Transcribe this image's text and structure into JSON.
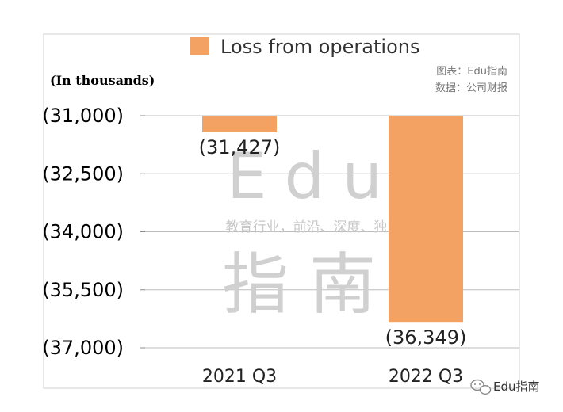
{
  "chart_data": {
    "type": "bar",
    "categories": [
      "2021 Q3",
      "2022 Q3"
    ],
    "series": [
      {
        "name": "Loss from operations",
        "values": [
          -31427,
          -36349
        ]
      }
    ],
    "data_labels": [
      "(31,427)",
      "(36,349)"
    ],
    "y_ticks": [
      -31000,
      -32500,
      -34000,
      -35500,
      -37000
    ],
    "y_tick_labels": [
      "(31,000)",
      "(32,500)",
      "(34,000)",
      "(35,500)",
      "(37,000)"
    ],
    "ylim": [
      -37000,
      -31000
    ],
    "unit_label": "(In thousands)",
    "legend_position": "top",
    "grid": true,
    "bar_color": "#F4A164"
  },
  "source": {
    "chart_by": "图表：Edu指南",
    "data_from": "数据：公司财报"
  },
  "watermark": {
    "brand": "Edu",
    "brand_cn": "指南",
    "tagline": "教育行业，前沿、深度、独家"
  },
  "footer": {
    "account": "Edu指南"
  }
}
